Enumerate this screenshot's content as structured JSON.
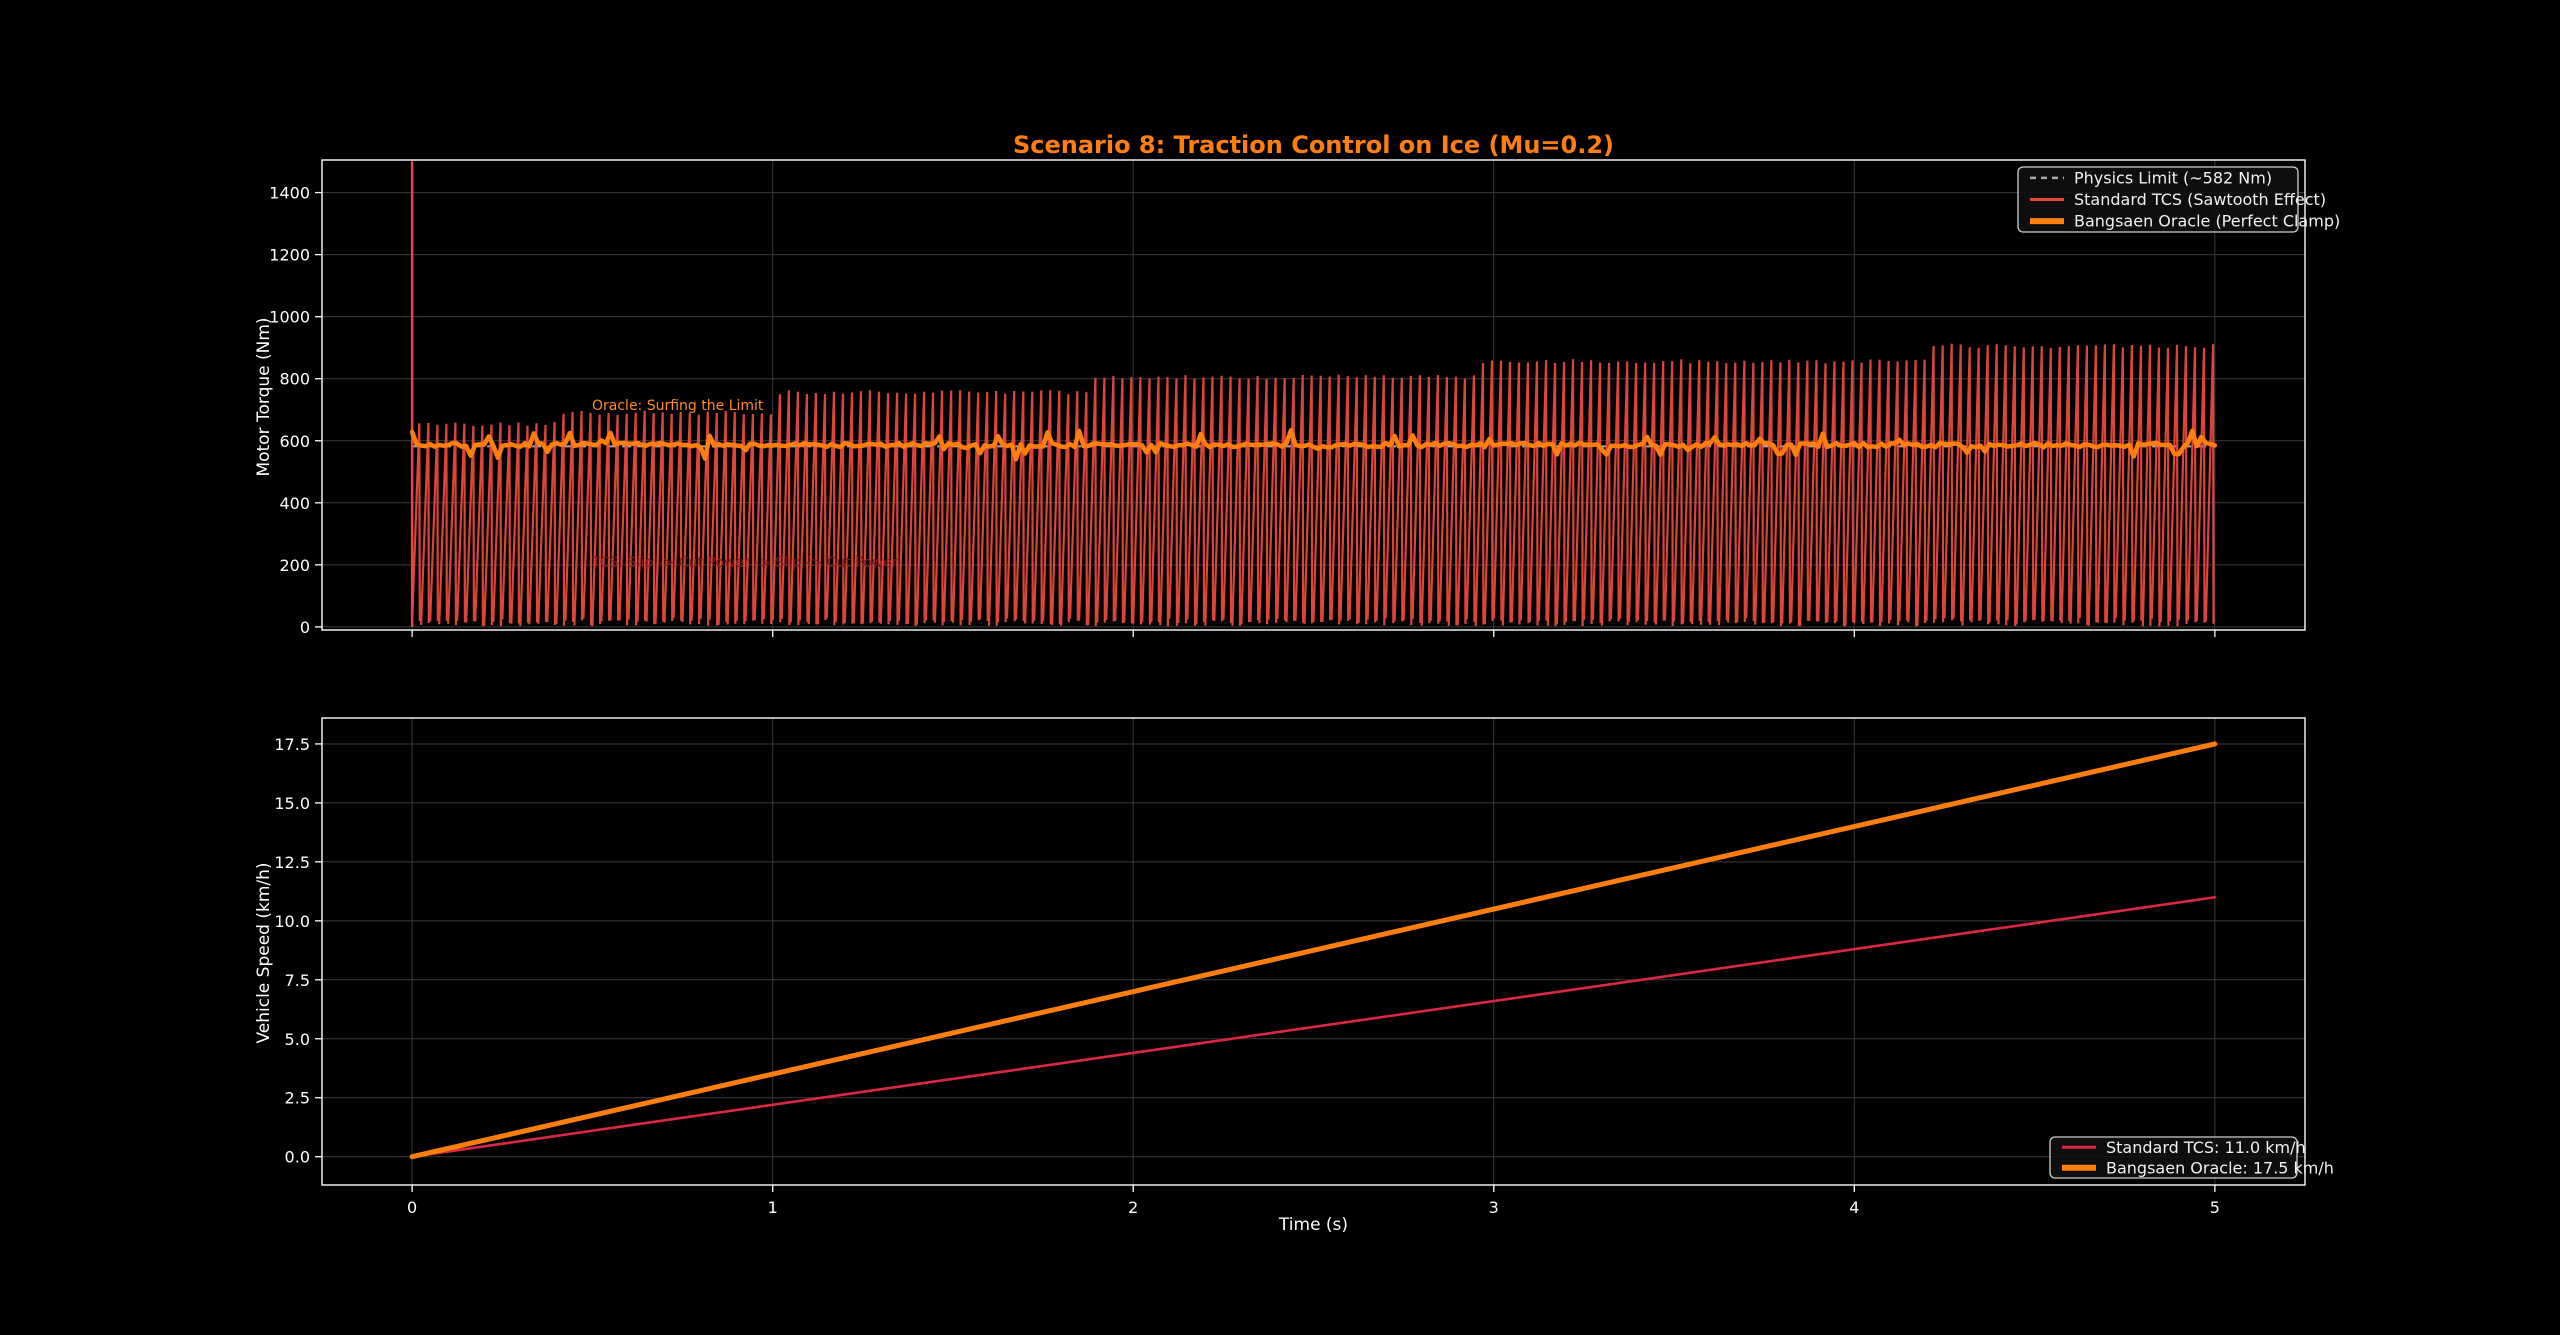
{
  "page": {
    "background": "#000000"
  },
  "title": {
    "text": "Scenario 8: Traction Control on Ice (Mu=0.2)",
    "color": "#ff7f0e"
  },
  "colors": {
    "axes_frame": "#ffffff",
    "grid": "#3a3a3a",
    "tick_label": "#ffffff",
    "legend_border": "#cfcfcf",
    "legend_fill": "#101010",
    "legend_text": "#f0f0f0",
    "physics_limit": "#aaaaaa",
    "tcs_red": "#e8493c",
    "speed_red": "#dc2744",
    "oracle_orange": "#ff7f0e",
    "annotation_orange": "#ff8c26",
    "annotation_darkred": "#8b1a1a"
  },
  "chart_data": [
    {
      "type": "line",
      "ylabel": "Motor Torque (Nm)",
      "xlim": [
        -0.25,
        5.25
      ],
      "ylim": [
        -10,
        1505
      ],
      "yticks": [
        0,
        200,
        400,
        600,
        800,
        1000,
        1200,
        1400
      ],
      "ytick_labels": [
        "0",
        "200",
        "400",
        "600",
        "800",
        "1000",
        "1200",
        "1400"
      ],
      "xticks": [
        0,
        1,
        2,
        3,
        4,
        5
      ],
      "xtick_labels": [],
      "grid": true,
      "legend": {
        "position": "upper right",
        "entries": [
          {
            "label": "Physics Limit (~582 Nm)",
            "color": "#aaaaaa",
            "dash": true,
            "lw": 2.5
          },
          {
            "label": "Standard TCS (Sawtooth Effect)",
            "color": "#e8493c",
            "dash": false,
            "lw": 3
          },
          {
            "label": "Bangsaen Oracle (Perfect Clamp)",
            "color": "#ff7f0e",
            "dash": false,
            "lw": 6
          }
        ]
      },
      "annotations": [
        {
          "text": "Oracle: Surfing the Limit",
          "x": 0.5,
          "y": 700,
          "color": "#ff8c26"
        },
        {
          "text": "TCS: Slip -> Cut Power -> Slip -> Cut Power",
          "x": 0.5,
          "y": 195,
          "color": "#8b1a1a"
        }
      ],
      "series": [
        {
          "name": "Physics Limit (~582 Nm)",
          "kind": "hline",
          "y": 582,
          "x_range": [
            0,
            5
          ]
        },
        {
          "name": "Standard TCS (Sawtooth Effect)",
          "kind": "sawtooth",
          "period": 0.025,
          "x_range": [
            0,
            5
          ],
          "valley": 0,
          "initial_spike": 1500,
          "envelope_steps": [
            [
              0,
              655
            ],
            [
              0.42,
              690
            ],
            [
              1.02,
              757
            ],
            [
              1.88,
              806
            ],
            [
              2.95,
              856
            ],
            [
              4.21,
              906
            ]
          ]
        },
        {
          "name": "Bangsaen Oracle (Perfect Clamp)",
          "kind": "noisy_clamp",
          "mean": 586,
          "jitter": 14,
          "x_range": [
            0,
            5
          ]
        }
      ]
    },
    {
      "type": "line",
      "xlabel": "Time (s)",
      "ylabel": "Vehicle Speed (km/h)",
      "xlim": [
        -0.25,
        5.25
      ],
      "ylim": [
        -1.2,
        18.6
      ],
      "yticks": [
        0,
        2.5,
        5,
        7.5,
        10,
        12.5,
        15,
        17.5
      ],
      "ytick_labels": [
        "0.0",
        "2.5",
        "5.0",
        "7.5",
        "10.0",
        "12.5",
        "15.0",
        "17.5"
      ],
      "xticks": [
        0,
        1,
        2,
        3,
        4,
        5
      ],
      "xtick_labels": [
        "0",
        "1",
        "2",
        "3",
        "4",
        "5"
      ],
      "grid": true,
      "legend": {
        "position": "lower right",
        "entries": [
          {
            "label": "Standard TCS: 11.0 km/h",
            "color": "#dc2744",
            "dash": false,
            "lw": 3
          },
          {
            "label": "Bangsaen Oracle: 17.5 km/h",
            "color": "#ff7f0e",
            "dash": false,
            "lw": 6
          }
        ]
      },
      "series": [
        {
          "name": "Standard TCS: 11.0 km/h",
          "kind": "linear",
          "x": [
            0,
            5
          ],
          "y": [
            0,
            11.0
          ],
          "final_value": "11.0 km/h"
        },
        {
          "name": "Bangsaen Oracle: 17.5 km/h",
          "kind": "linear",
          "x": [
            0,
            5
          ],
          "y": [
            0,
            17.5
          ],
          "final_value": "17.5 km/h"
        }
      ]
    }
  ]
}
